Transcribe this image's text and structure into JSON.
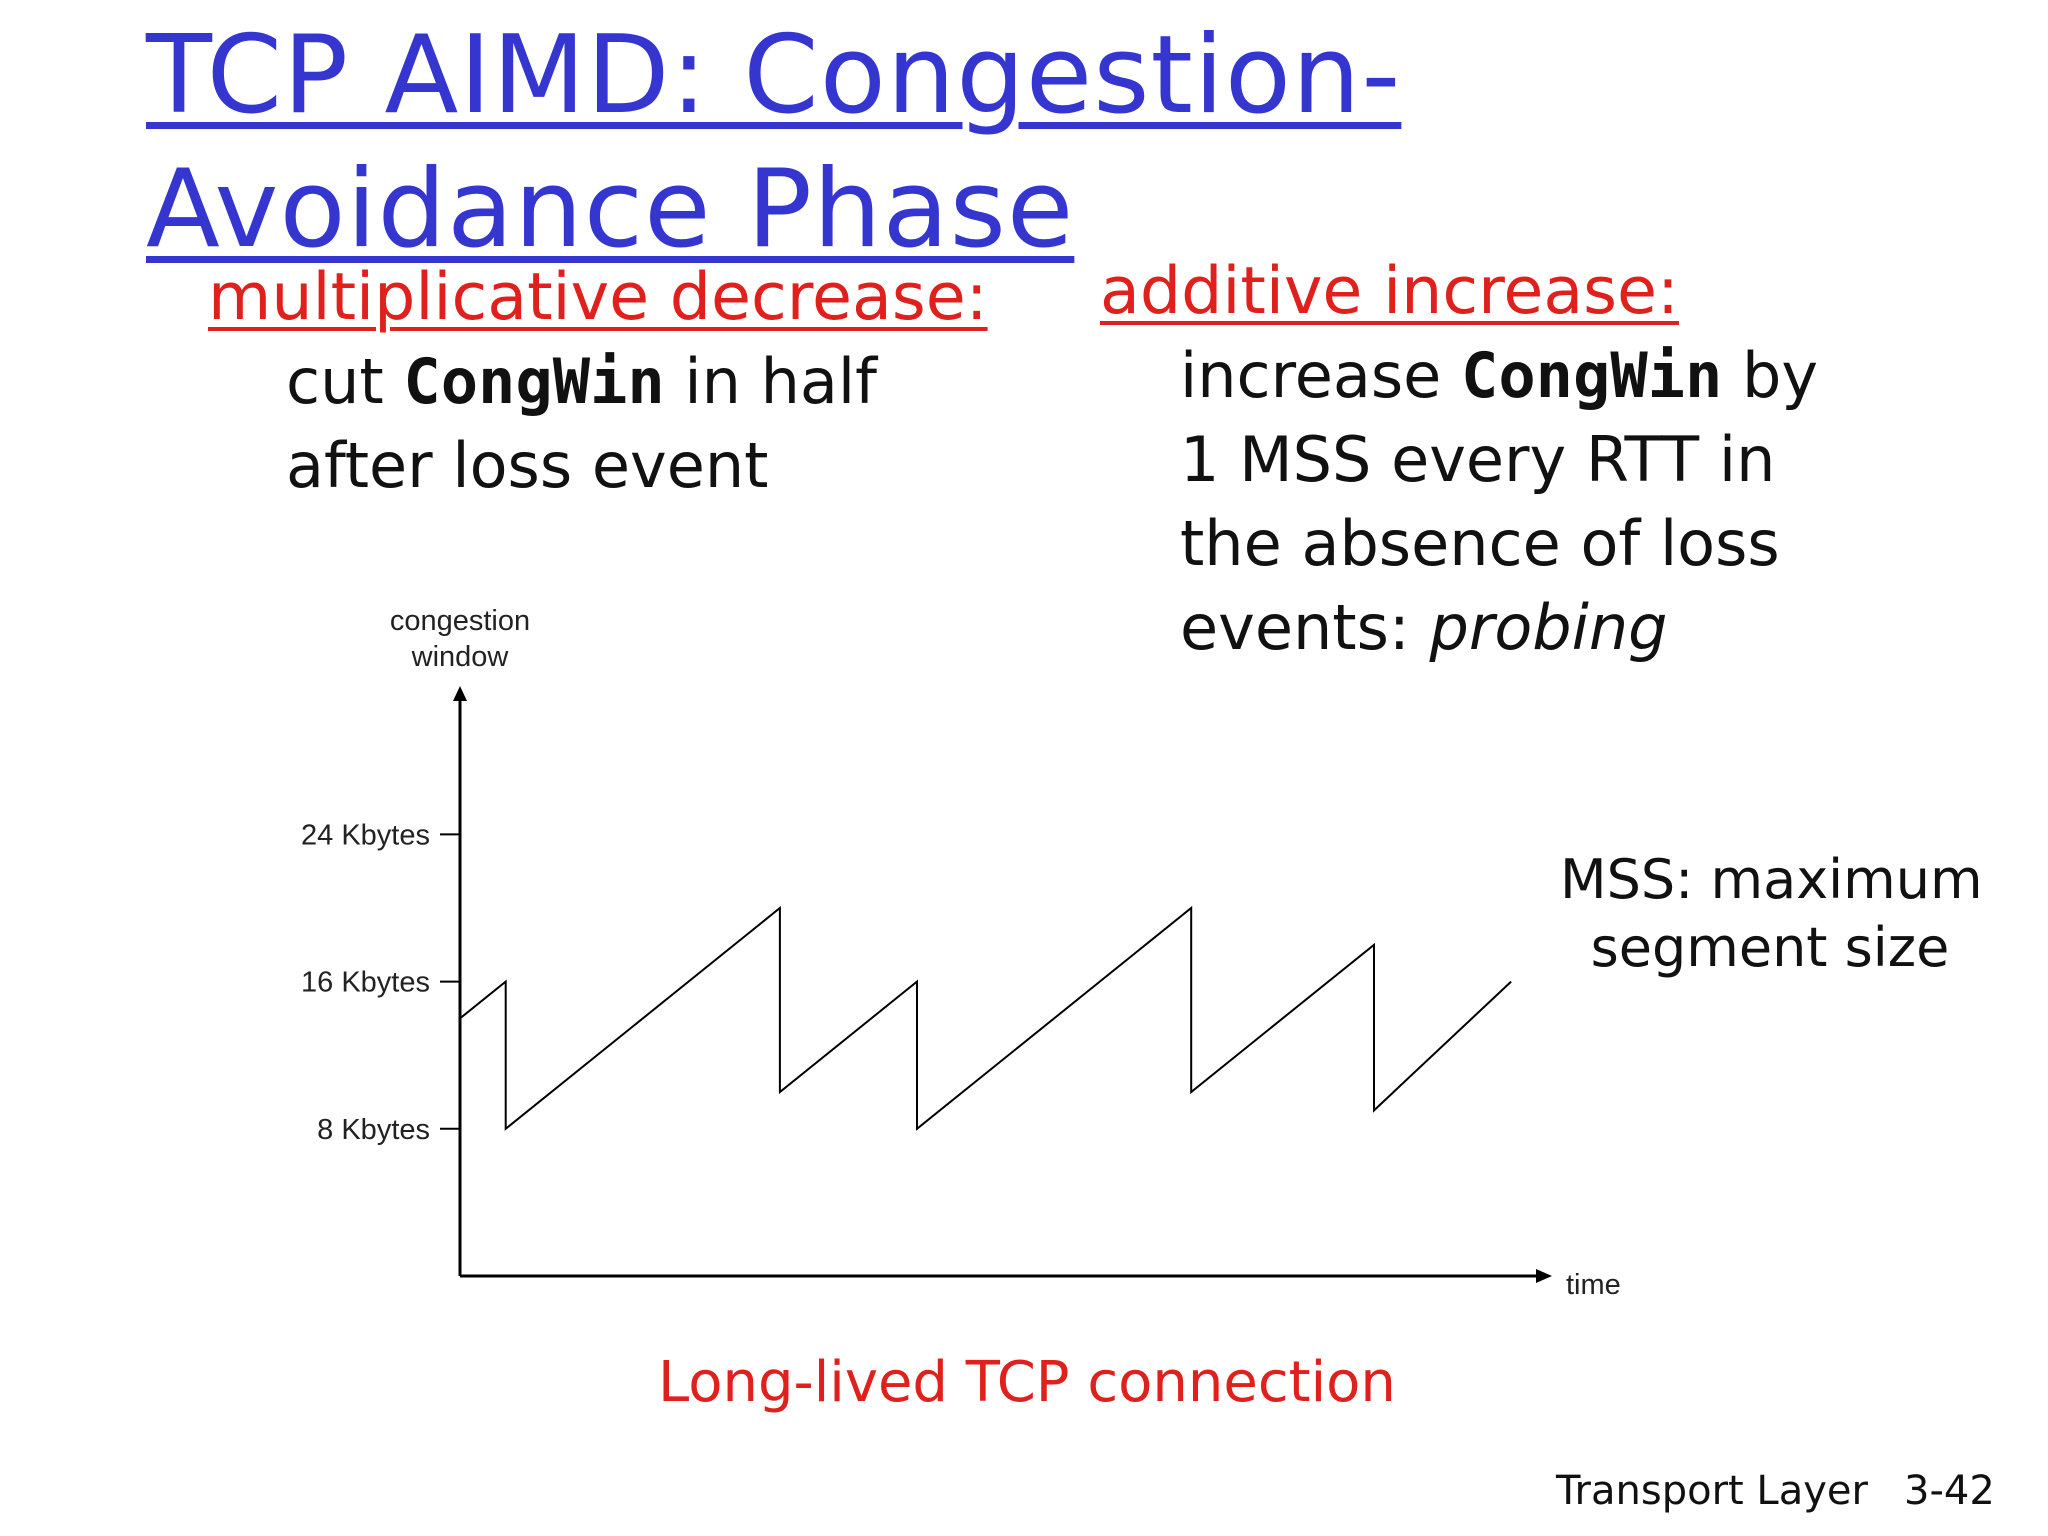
{
  "slide": {
    "title_line1": "TCP AIMD: Congestion-",
    "title_line2": "Avoidance Phase",
    "left": {
      "heading": "multiplicative decrease:",
      "line1_pre": "cut ",
      "line1_code": "CongWin",
      "line1_post": " in half",
      "line2": "after loss event"
    },
    "right": {
      "heading": "additive increase:",
      "line1_pre": "increase ",
      "line1_code": "CongWin",
      "line1_post": " by",
      "line2": "1 MSS every RTT in",
      "line3": "the absence of loss",
      "line4_pre": "events: ",
      "line4_italic": "probing"
    },
    "mss_note_line1": "MSS: maximum",
    "mss_note_line2": "segment size",
    "caption": "Long-lived TCP connection",
    "footer_section": "Transport Layer",
    "footer_page": "3-42"
  },
  "colors": {
    "title": "#3535d0",
    "heading": "#e0201c",
    "text": "#111111"
  },
  "chart_data": {
    "type": "line",
    "ylabel_line1": "congestion",
    "ylabel_line2": "window",
    "xlabel": "time",
    "y_unit": "Kbytes",
    "yticks": [
      {
        "value": 8,
        "label": "8 Kbytes"
      },
      {
        "value": 16,
        "label": "16 Kbytes"
      },
      {
        "value": 24,
        "label": "24 Kbytes"
      }
    ],
    "ylim": [
      0,
      24
    ],
    "xlim": [
      0,
      23.5
    ],
    "grid": false,
    "legend": "none",
    "series": [
      {
        "points": [
          [
            0,
            14
          ],
          [
            1,
            16
          ],
          [
            1,
            8
          ],
          [
            7,
            20
          ],
          [
            7,
            10
          ],
          [
            10,
            16
          ],
          [
            10,
            8
          ],
          [
            16,
            20
          ],
          [
            16,
            10
          ],
          [
            20,
            18
          ],
          [
            20,
            9
          ],
          [
            23,
            16
          ]
        ]
      }
    ]
  }
}
